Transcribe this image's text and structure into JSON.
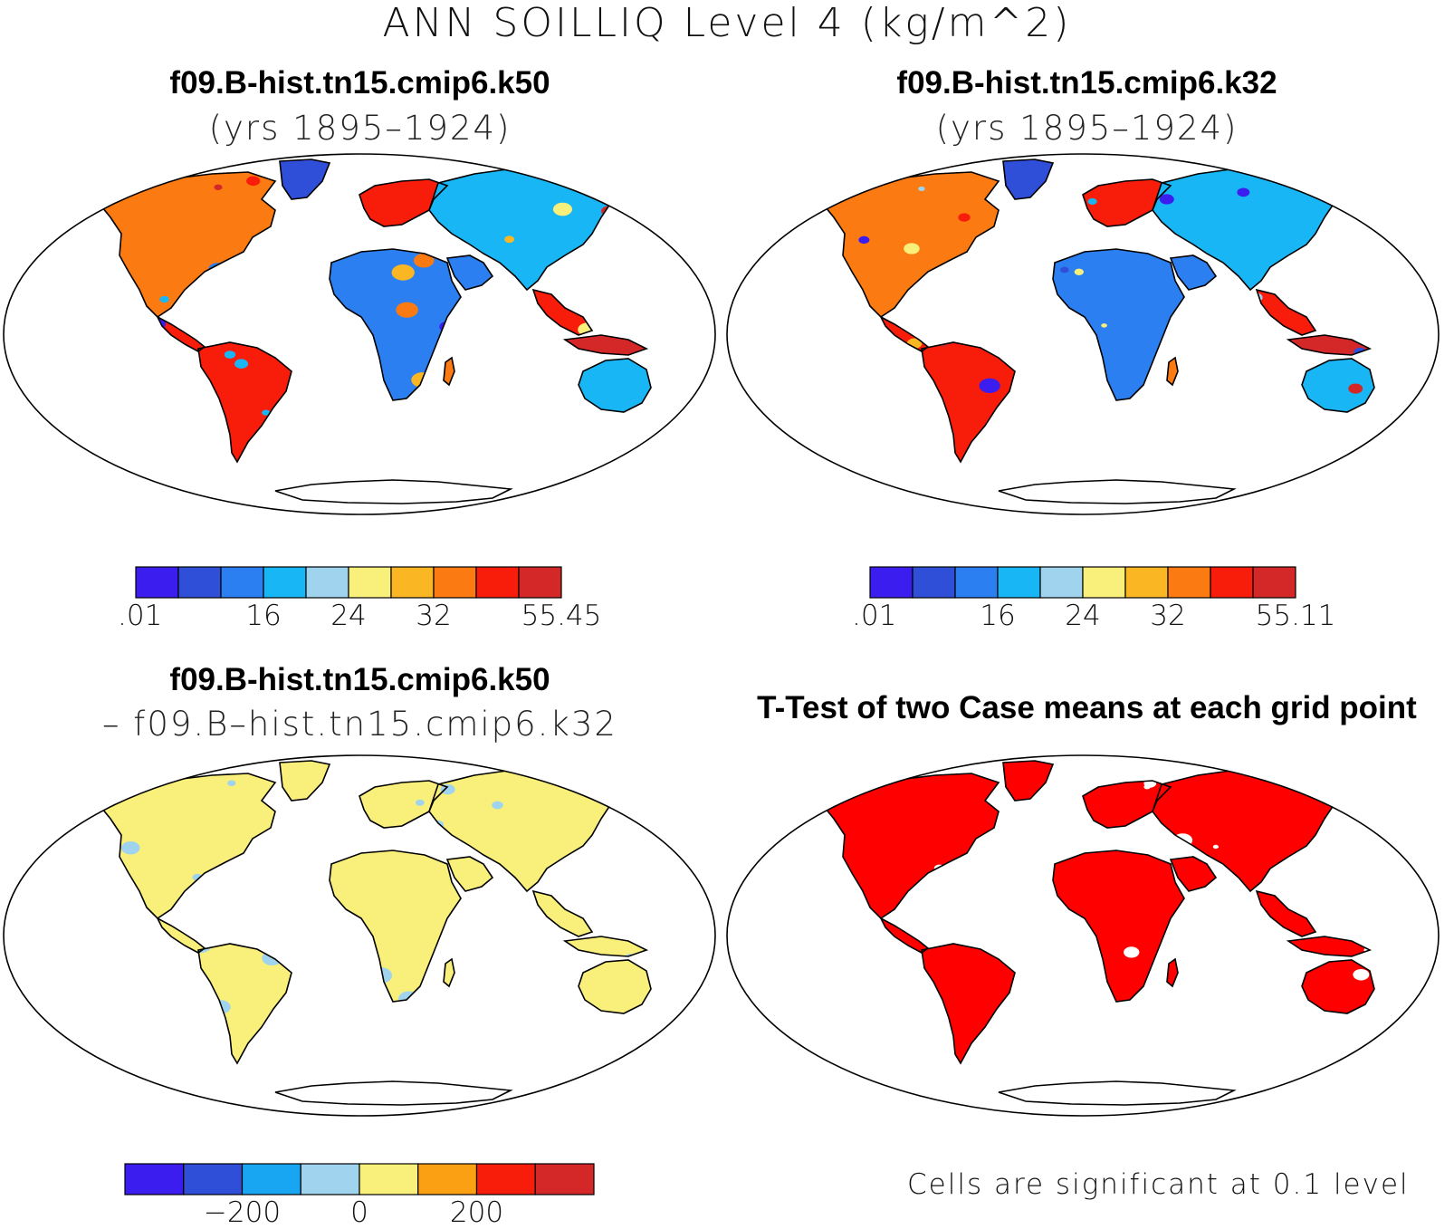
{
  "figure_title": "ANN SOILLIQ Level 4 (kg/m^2)",
  "panels": [
    {
      "title": "f09.B-hist.tn15.cmip6.k50",
      "subtitle": "(yrs 1895–1924)"
    },
    {
      "title": "f09.B-hist.tn15.cmip6.k32",
      "subtitle": "(yrs 1895–1924)"
    },
    {
      "title": "f09.B-hist.tn15.cmip6.k50",
      "subtitle": "– f09.B–hist.tn15.cmip6.k32"
    },
    {
      "title": "T-Test of two Case means at each grid point",
      "subtitle": ""
    }
  ],
  "colorbars": [
    {
      "colors": [
        "#3b1df0",
        "#2f4fd8",
        "#2b7ff0",
        "#19b6f5",
        "#9fd3ee",
        "#f9ef7b",
        "#fbb623",
        "#fb7a12",
        "#f81d0b",
        "#d42828"
      ],
      "labels": [
        ".01",
        "16",
        "24",
        "32",
        "55.45"
      ]
    },
    {
      "colors": [
        "#3b1df0",
        "#2f4fd8",
        "#2b7ff0",
        "#19b6f5",
        "#9fd3ee",
        "#f9ef7b",
        "#fbb623",
        "#fb7a12",
        "#f81d0b",
        "#d42828"
      ],
      "labels": [
        ".01",
        "16",
        "24",
        "32",
        "55.11"
      ]
    },
    {
      "colors": [
        "#3b1df0",
        "#2f4fd8",
        "#18a6f2",
        "#9fd3ee",
        "#f9ef7b",
        "#fba012",
        "#f81d0b",
        "#d42828"
      ],
      "labels": [
        "−200",
        "0",
        "200"
      ]
    }
  ],
  "significance_note": "Cells are significant at 0.1 level",
  "map_colors": {
    "panel1": [
      "#3b1df0",
      "#2f4fd8",
      "#2b7ff0",
      "#19b6f5",
      "#9fd3ee",
      "#f9ef7b",
      "#fbb623",
      "#fb7a12",
      "#f81d0b",
      "#d42828"
    ],
    "panel3": [
      "#9fd3ee",
      "#f9ef7b"
    ],
    "panel4": [
      "#ff0000",
      "#ffffff"
    ]
  }
}
